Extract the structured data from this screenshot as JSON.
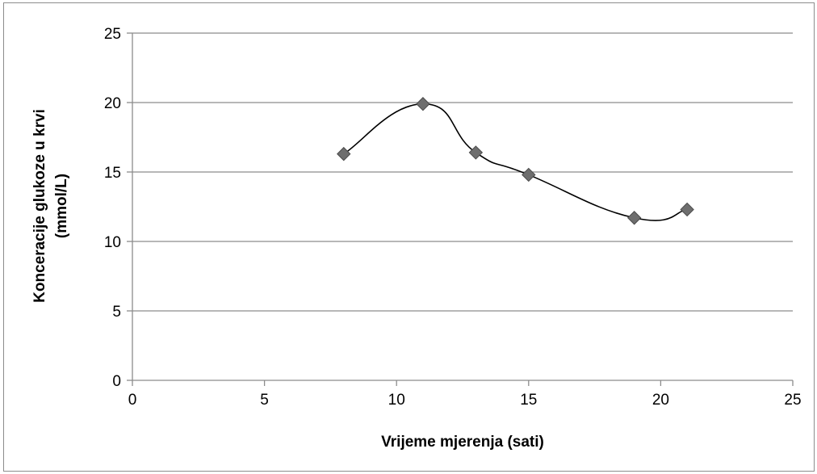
{
  "chart_data": {
    "type": "scatter",
    "title": "",
    "xlabel": "Vrijeme mjerenja (sati)",
    "ylabel_lines": [
      "Konceracije glukoze u krvi",
      "(mmol/L)"
    ],
    "xlim": [
      0,
      25
    ],
    "ylim": [
      0,
      25
    ],
    "xticks": [
      0,
      5,
      10,
      15,
      20,
      25
    ],
    "yticks": [
      0,
      5,
      10,
      15,
      20,
      25
    ],
    "grid": "horizontal",
    "legend": "none",
    "smoothed_line": true,
    "marker": "diamond",
    "colors": {
      "marker": "#6e6e6e",
      "marker_stroke": "#4a4a4a",
      "line": "#000000",
      "grid": "#8c8c8c",
      "axis": "#8c8c8c"
    },
    "series": [
      {
        "x": [
          8,
          11,
          13,
          15,
          19,
          21
        ],
        "y": [
          16.3,
          19.9,
          16.4,
          14.8,
          11.7,
          12.3
        ]
      }
    ]
  }
}
